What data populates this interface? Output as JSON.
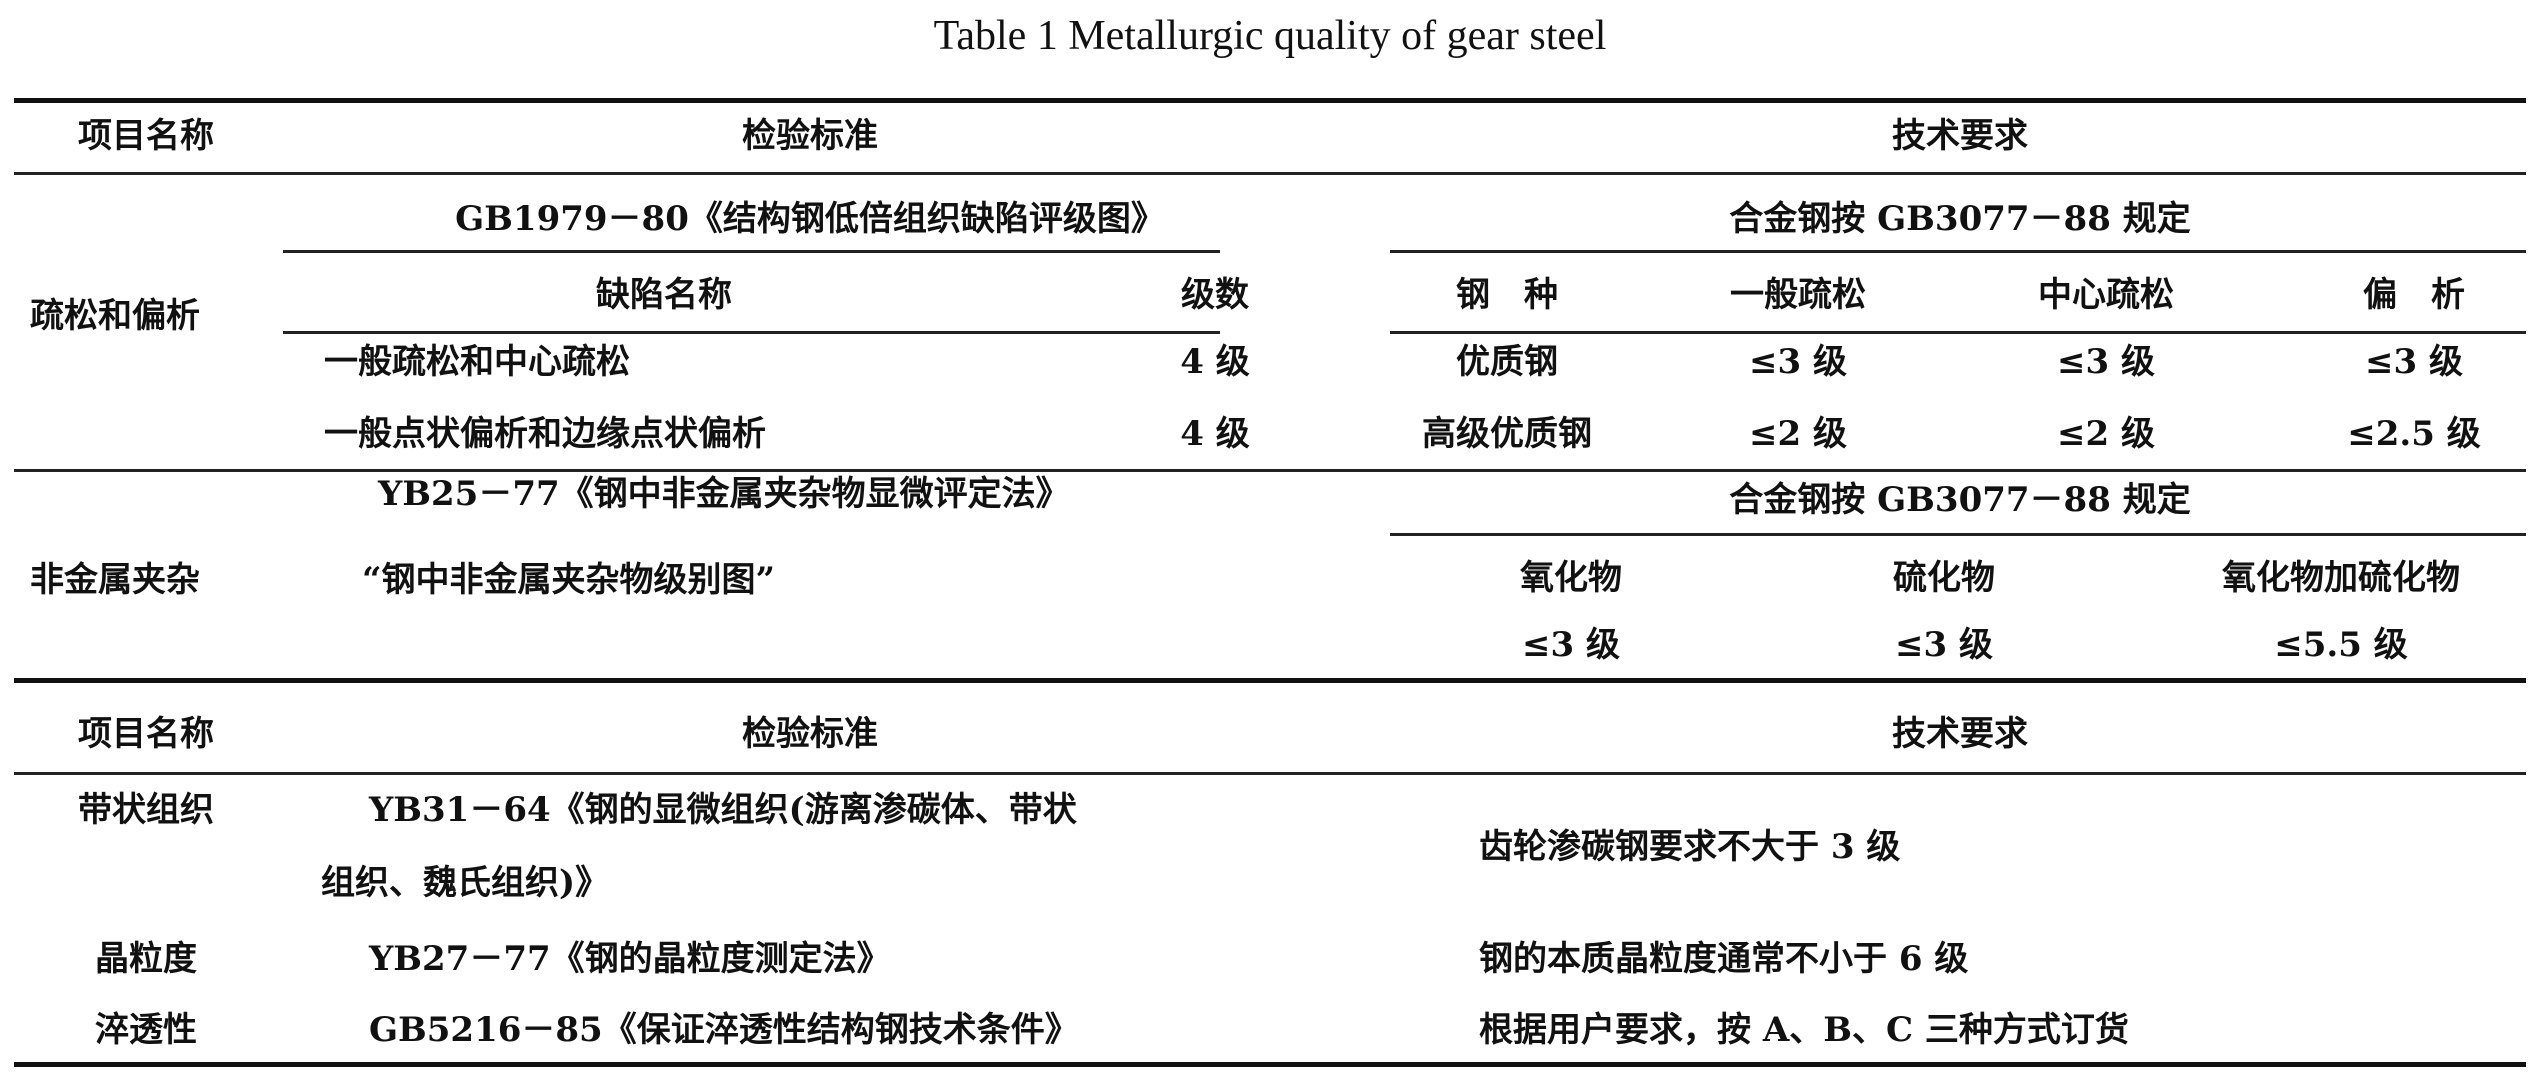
{
  "title": "Table 1    Metallurgic quality of gear steel",
  "header": {
    "item": "项目名称",
    "standard": "检验标准",
    "requirement": "技术要求"
  },
  "section1": {
    "porosity": {
      "item": "疏松和偏析",
      "standard": "GB1979－80《结构钢低倍组织缺陷评级图》",
      "defect_header": "缺陷名称",
      "grade_header": "级数",
      "defects": [
        {
          "name": "一般疏松和中心疏松",
          "grade": "4 级"
        },
        {
          "name": "一般点状偏析和边缘点状偏析",
          "grade": "4 级"
        }
      ],
      "requirement": "合金钢按 GB3077－88 规定",
      "req_headers": [
        "钢　种",
        "一般疏松",
        "中心疏松",
        "偏　析"
      ],
      "req_rows": [
        [
          "优质钢",
          "≤3 级",
          "≤3 级",
          "≤3 级"
        ],
        [
          "高级优质钢",
          "≤2 级",
          "≤2 级",
          "≤2.5 级"
        ]
      ]
    },
    "inclusion": {
      "item": "非金属夹杂",
      "standard_line1": "YB25－77《钢中非金属夹杂物显微评定法》",
      "standard_line2": "“钢中非金属夹杂物级别图”",
      "requirement": "合金钢按 GB3077－88 规定",
      "req_headers": [
        "氧化物",
        "硫化物",
        "氧化物加硫化物"
      ],
      "req_values": [
        "≤3 级",
        "≤3 级",
        "≤5.5 级"
      ]
    }
  },
  "section2": {
    "rows": [
      {
        "item": "带状组织",
        "standard_line1": "YB31－64《钢的显微组织(游离渗碳体、带状",
        "standard_line2": "组织、魏氏组织)》",
        "requirement": "齿轮渗碳钢要求不大于 3 级"
      },
      {
        "item": "晶粒度",
        "standard": "YB27－77《钢的晶粒度测定法》",
        "requirement": "钢的本质晶粒度通常不小于 6 级"
      },
      {
        "item": "淬透性",
        "standard": "GB5216－85《保证淬透性结构钢技术条件》",
        "requirement": "根据用户要求，按 A、B、C 三种方式订货"
      }
    ]
  }
}
